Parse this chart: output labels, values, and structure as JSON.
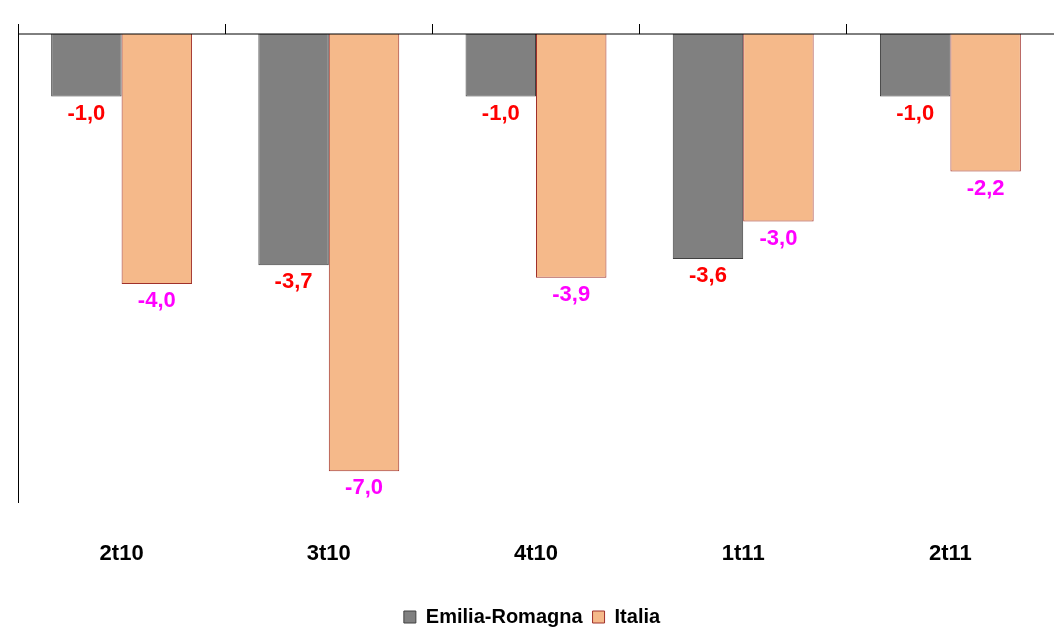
{
  "chart_data": {
    "type": "bar",
    "categories": [
      "2t10",
      "3t10",
      "4t10",
      "1t11",
      "2t11"
    ],
    "series": [
      {
        "name": "Emilia-Romagna",
        "color": "#808080",
        "values": [
          -1.0,
          -3.7,
          -1.0,
          -3.6,
          -1.0
        ],
        "value_labels": [
          "-1,0",
          "-3,7",
          "-1,0",
          "-3,6",
          "-1,0"
        ]
      },
      {
        "name": "Italia",
        "color": "#f5b98a",
        "values": [
          -4.0,
          -7.0,
          -3.9,
          -3.0,
          -2.2
        ],
        "value_labels": [
          "-4,0",
          "-7,0",
          "-3,9",
          "-3,0",
          "-2,2"
        ]
      }
    ],
    "ylim": [
      -7.5,
      0
    ],
    "tick_labels": "x",
    "grid": false,
    "legend": "bottom"
  }
}
